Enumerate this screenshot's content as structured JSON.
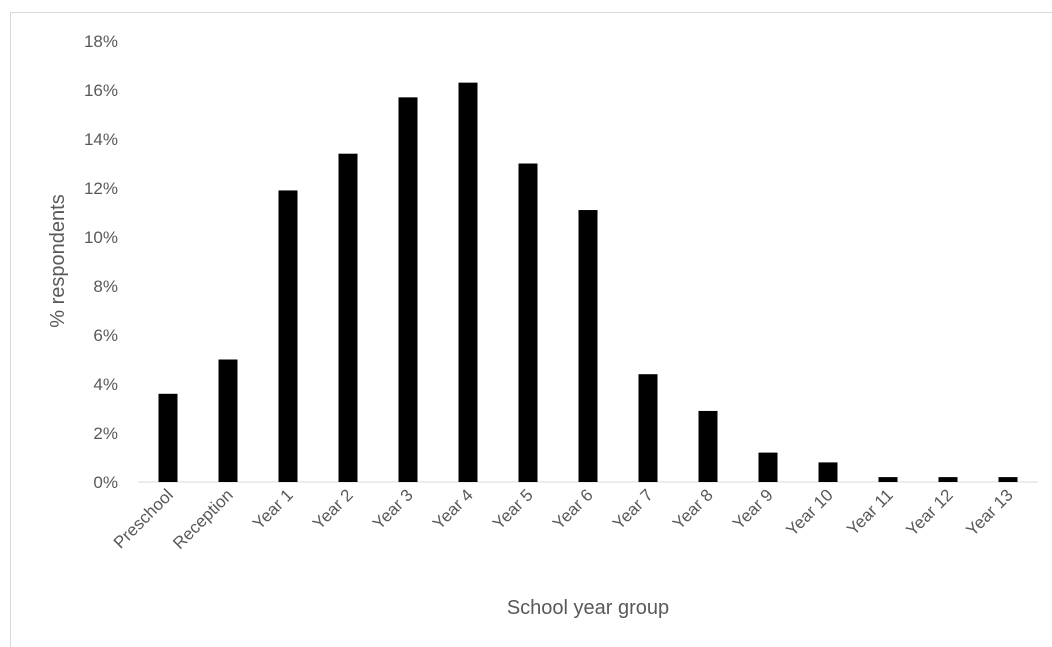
{
  "chart_data": {
    "type": "bar",
    "title": "",
    "xlabel": "School year group",
    "ylabel": "% respondents",
    "categories": [
      "Preschool",
      "Reception",
      "Year 1",
      "Year 2",
      "Year 3",
      "Year 4",
      "Year 5",
      "Year 6",
      "Year 7",
      "Year 8",
      "Year 9",
      "Year 10",
      "Year 11",
      "Year 12",
      "Year 13"
    ],
    "values": [
      3.6,
      5.0,
      11.9,
      13.4,
      15.7,
      16.3,
      13.0,
      11.1,
      4.4,
      2.9,
      1.2,
      0.8,
      0.2,
      0.2,
      0.2
    ],
    "ylim": [
      0,
      18
    ],
    "yticks": [
      0,
      2,
      4,
      6,
      8,
      10,
      12,
      14,
      16,
      18
    ],
    "ytick_labels": [
      "0%",
      "2%",
      "4%",
      "6%",
      "8%",
      "10%",
      "12%",
      "14%",
      "16%",
      "18%"
    ],
    "bar_color": "#000000",
    "grid": false,
    "legend": "none"
  }
}
